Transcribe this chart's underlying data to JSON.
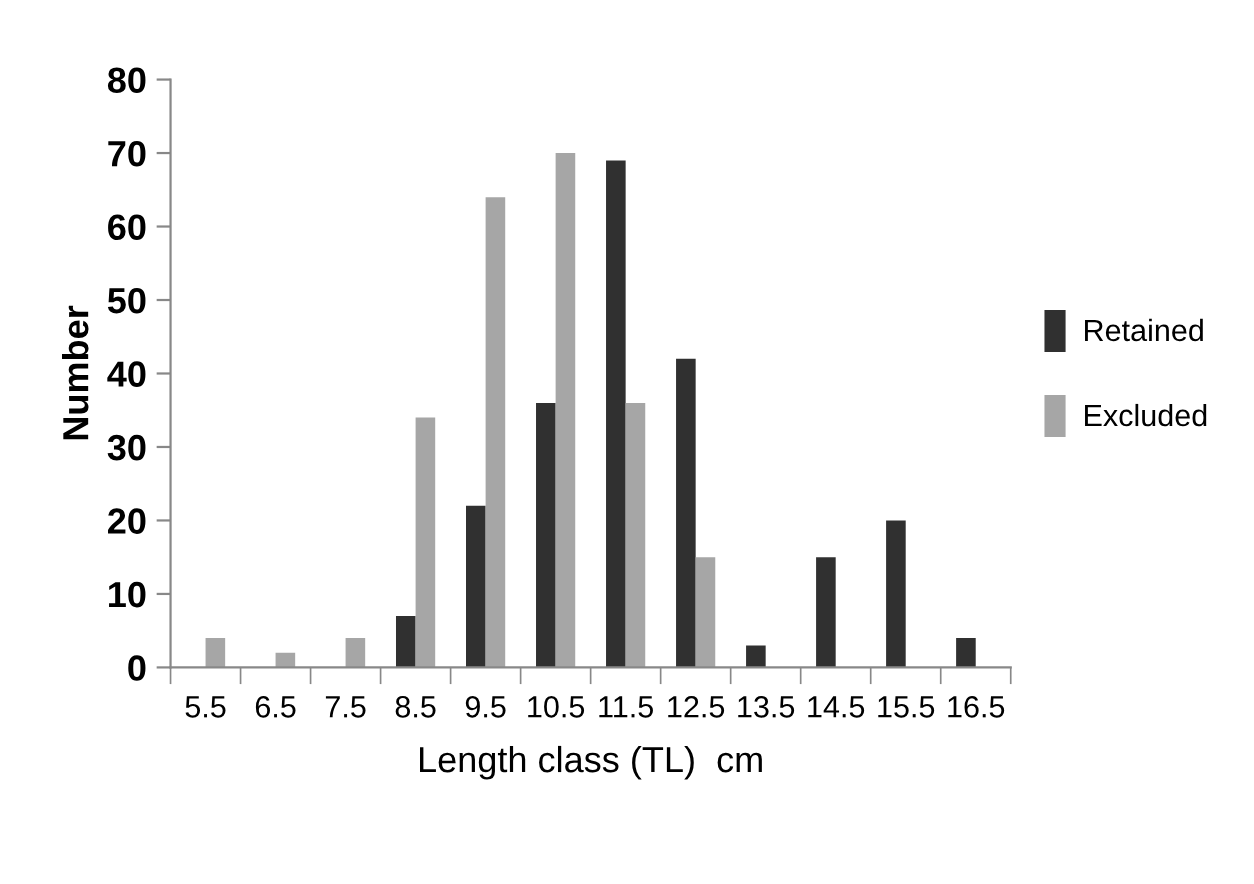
{
  "chart_data": {
    "type": "bar",
    "xlabel": "Length class (TL)  cm",
    "ylabel": "Number",
    "categories": [
      "5.5",
      "6.5",
      "7.5",
      "8.5",
      "9.5",
      "10.5",
      "11.5",
      "12.5",
      "13.5",
      "14.5",
      "15.5",
      "16.5"
    ],
    "series": [
      {
        "name": "Retained",
        "color": "#303030",
        "values": [
          0,
          0,
          0,
          7,
          22,
          36,
          69,
          42,
          3,
          15,
          20,
          4
        ]
      },
      {
        "name": "Excluded",
        "color": "#a6a6a6",
        "values": [
          4,
          2,
          4,
          34,
          64,
          70,
          36,
          15,
          0,
          0,
          0,
          0
        ]
      }
    ],
    "ylim": [
      0,
      80
    ],
    "yticks": [
      0,
      10,
      20,
      30,
      40,
      50,
      60,
      70,
      80
    ],
    "grid": false,
    "legend": "right"
  }
}
